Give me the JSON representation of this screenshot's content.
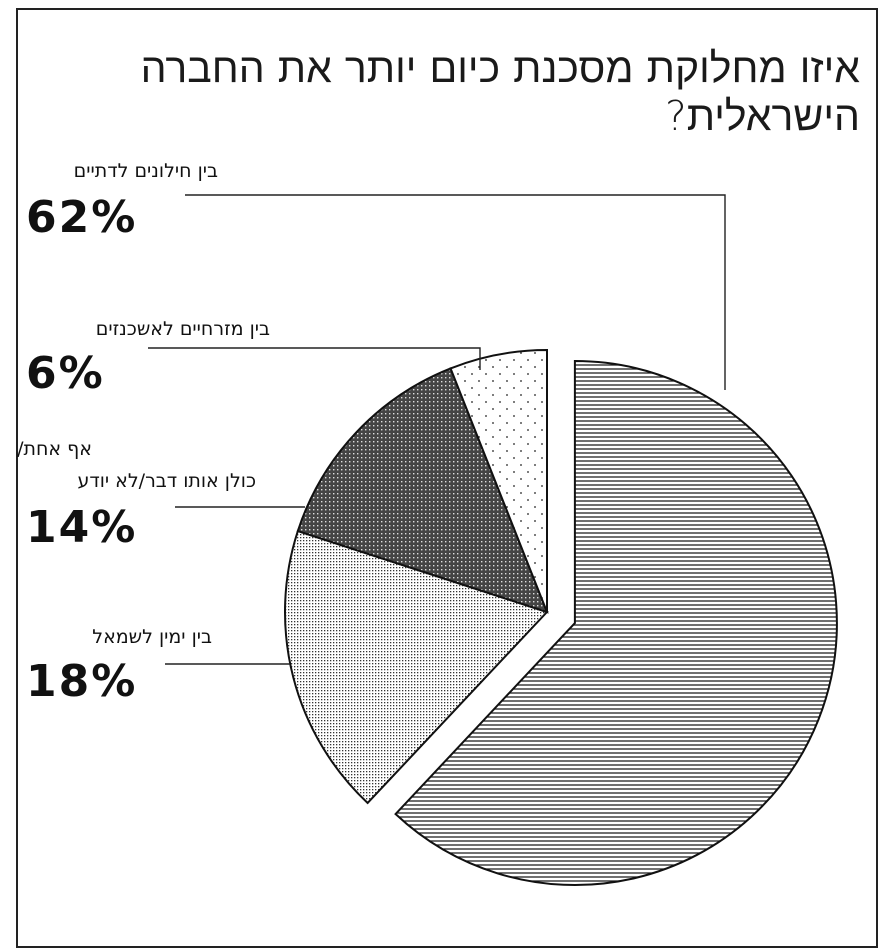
{
  "chart_data": {
    "type": "pie",
    "title": "איזו מחלוקת מסכנת כיום יותר את החברה הישראלית?",
    "slices": [
      {
        "label": "בין חילונים לדתיים",
        "value": 62,
        "value_label": "62%",
        "pattern": "horizontal-lines",
        "exploded": true
      },
      {
        "label": "בין ימין לשמאל",
        "value": 18,
        "value_label": "18%",
        "pattern": "fine-dots"
      },
      {
        "label_lines": [
          "אף אחת/",
          "כולן אותו דבר/לא יודע"
        ],
        "value": 14,
        "value_label": "14%",
        "pattern": "crosshatch"
      },
      {
        "label": "בין מזרחיים לאשכנזים",
        "value": 6,
        "value_label": "6%",
        "pattern": "sparse-dots"
      }
    ]
  }
}
